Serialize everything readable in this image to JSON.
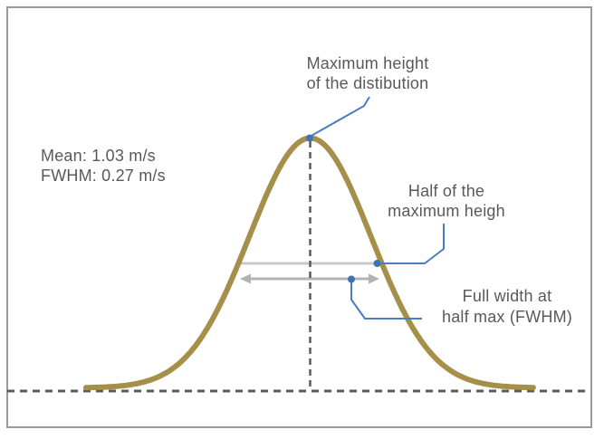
{
  "colors": {
    "frame": "#9b9b9b",
    "text": "#58595b",
    "curve": "#a68f49",
    "dash": "#5a5b5d",
    "half-line": "#c7c8ca",
    "arrow": "#b1b3b6",
    "connector": "#4a7dc0",
    "dot": "#3f73b8"
  },
  "labels": {
    "stats": {
      "line1": "Mean: 1.03 m/s",
      "line2": "FWHM: 0.27 m/s"
    },
    "max_height": {
      "line1": "Maximum height",
      "line2": "of the distibution"
    },
    "half_max": {
      "line1": "Half of the",
      "line2": "maximum heigh"
    },
    "fwhm": {
      "line1": "Full width at",
      "line2": "half max (FWHM)"
    }
  },
  "chart_data": {
    "type": "line",
    "curve": "gaussian",
    "mean": 1.03,
    "fwhm": 0.27,
    "units": "m/s",
    "x_range": [
      0.607,
      1.453
    ],
    "peak_height_normalized": 1.0,
    "grid": false,
    "axes_shown": false,
    "annotations": [
      "Maximum height of the distibution",
      "Half of the maximum heigh",
      "Full width at half max (FWHM)",
      "Mean: 1.03 m/s",
      "FWHM: 0.27 m/s"
    ]
  }
}
